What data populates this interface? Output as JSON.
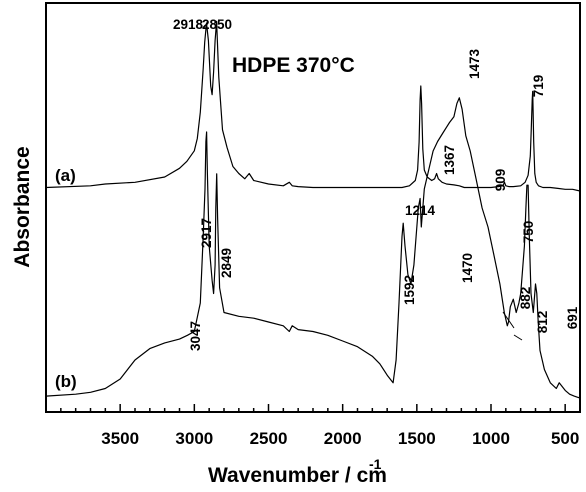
{
  "chart_data": {
    "type": "line",
    "title": "HDPE 370°C",
    "xlabel": "Wavenumber / cm",
    "xlabel_superscript": "-1",
    "ylabel": "Absorbance",
    "xlim": [
      4000,
      400
    ],
    "x_reversed": true,
    "y_ticks_labeled": false,
    "grid": false,
    "x_ticks": [
      3500,
      3000,
      2500,
      2000,
      1500,
      1000,
      500
    ],
    "x_tick_labels": [
      "3500",
      "3000",
      "2500",
      "2000",
      "1500",
      "1000",
      "500"
    ],
    "series": [
      {
        "label": "(a)",
        "x": [
          4000,
          3700,
          3600,
          3400,
          3200,
          3100,
          3050,
          3000,
          2980,
          2960,
          2940,
          2930,
          2918,
          2905,
          2890,
          2880,
          2870,
          2860,
          2850,
          2835,
          2810,
          2780,
          2740,
          2700,
          2660,
          2630,
          2600,
          2500,
          2400,
          2360,
          2340,
          2300,
          2200,
          2000,
          1800,
          1600,
          1550,
          1510,
          1495,
          1485,
          1478,
          1473,
          1468,
          1460,
          1450,
          1430,
          1400,
          1380,
          1367,
          1355,
          1330,
          1300,
          1250,
          1214,
          1180,
          1100,
          1000,
          950,
          920,
          909,
          900,
          880,
          850,
          800,
          770,
          750,
          735,
          728,
          722,
          719,
          716,
          712,
          705,
          695,
          680,
          650,
          600,
          550,
          500,
          450,
          400
        ],
        "values": [
          0.02,
          0.03,
          0.04,
          0.05,
          0.08,
          0.13,
          0.17,
          0.23,
          0.3,
          0.45,
          0.7,
          0.85,
          0.96,
          0.86,
          0.6,
          0.55,
          0.68,
          0.86,
          0.97,
          0.65,
          0.35,
          0.25,
          0.14,
          0.1,
          0.07,
          0.1,
          0.06,
          0.04,
          0.03,
          0.05,
          0.03,
          0.025,
          0.02,
          0.02,
          0.02,
          0.02,
          0.03,
          0.06,
          0.12,
          0.28,
          0.52,
          0.6,
          0.5,
          0.24,
          0.12,
          0.08,
          0.06,
          0.07,
          0.1,
          0.07,
          0.05,
          0.04,
          0.035,
          0.03,
          0.02,
          0.02,
          0.02,
          0.025,
          0.03,
          0.05,
          0.03,
          0.025,
          0.025,
          0.03,
          0.05,
          0.09,
          0.2,
          0.36,
          0.52,
          0.57,
          0.46,
          0.28,
          0.1,
          0.05,
          0.03,
          0.02,
          0.02,
          0.015,
          0.01,
          0.01,
          0.0
        ]
      },
      {
        "label": "(b)",
        "x": [
          4000,
          3800,
          3700,
          3600,
          3500,
          3400,
          3300,
          3200,
          3100,
          3047,
          3000,
          2960,
          2940,
          2928,
          2922,
          2917,
          2912,
          2900,
          2880,
          2870,
          2860,
          2855,
          2849,
          2843,
          2830,
          2800,
          2700,
          2600,
          2500,
          2400,
          2360,
          2340,
          2300,
          2200,
          2100,
          2000,
          1900,
          1800,
          1750,
          1700,
          1660,
          1640,
          1620,
          1600,
          1592,
          1580,
          1560,
          1540,
          1520,
          1505,
          1490,
          1478,
          1470,
          1462,
          1450,
          1420,
          1390,
          1360,
          1320,
          1280,
          1250,
          1230,
          1214,
          1195,
          1170,
          1140,
          1100,
          1060,
          1020,
          980,
          940,
          910,
          890,
          882,
          870,
          850,
          830,
          812,
          800,
          790,
          775,
          765,
          758,
          750,
          742,
          730,
          715,
          700,
          691,
          682,
          670,
          640,
          600,
          560,
          540,
          500,
          470,
          440,
          420,
          400
        ],
        "values": [
          0.01,
          0.02,
          0.03,
          0.05,
          0.1,
          0.2,
          0.26,
          0.29,
          0.31,
          0.33,
          0.35,
          0.5,
          0.85,
          1.1,
          1.35,
          1.4,
          1.18,
          0.8,
          0.62,
          0.55,
          0.7,
          1.0,
          1.18,
          0.95,
          0.58,
          0.45,
          0.43,
          0.42,
          0.4,
          0.38,
          0.35,
          0.38,
          0.36,
          0.35,
          0.33,
          0.3,
          0.27,
          0.22,
          0.18,
          0.12,
          0.08,
          0.2,
          0.5,
          0.85,
          0.92,
          0.8,
          0.65,
          0.6,
          0.7,
          0.85,
          1.0,
          1.05,
          0.9,
          0.98,
          1.1,
          1.2,
          1.3,
          1.35,
          1.4,
          1.45,
          1.48,
          1.55,
          1.58,
          1.52,
          1.38,
          1.3,
          1.15,
          1.0,
          0.9,
          0.75,
          0.6,
          0.45,
          0.38,
          0.4,
          0.48,
          0.52,
          0.45,
          0.5,
          0.55,
          0.65,
          0.8,
          1.0,
          1.12,
          1.12,
          0.85,
          0.55,
          0.45,
          0.6,
          0.55,
          0.4,
          0.25,
          0.15,
          0.08,
          0.05,
          0.08,
          0.04,
          0.02,
          0.01,
          0.005,
          0.0
        ]
      }
    ],
    "peak_labels": [
      {
        "series": "(a)",
        "text": "2918",
        "x": 2918
      },
      {
        "series": "(a)",
        "text": "2850",
        "x": 2850
      },
      {
        "series": "(a)",
        "text": "1473",
        "x": 1473
      },
      {
        "series": "(a)",
        "text": "1367",
        "x": 1367
      },
      {
        "series": "(a)",
        "text": "909",
        "x": 909
      },
      {
        "series": "(a)",
        "text": "719",
        "x": 719
      },
      {
        "series": "(b)",
        "text": "1214",
        "x": 1214
      },
      {
        "series": "(b)",
        "text": "2917",
        "x": 2917
      },
      {
        "series": "(b)",
        "text": "2849",
        "x": 2849
      },
      {
        "series": "(b)",
        "text": "3047",
        "x": 3047
      },
      {
        "series": "(b)",
        "text": "1592",
        "x": 1592
      },
      {
        "series": "(b)",
        "text": "1470",
        "x": 1470
      },
      {
        "series": "(b)",
        "text": "750",
        "x": 750
      },
      {
        "series": "(b)",
        "text": "882",
        "x": 882
      },
      {
        "series": "(b)",
        "text": "812",
        "x": 812
      },
      {
        "series": "(b)",
        "text": "691",
        "x": 691
      }
    ],
    "colors": {
      "line": "#000000",
      "axis": "#000000",
      "background": "#ffffff"
    }
  }
}
